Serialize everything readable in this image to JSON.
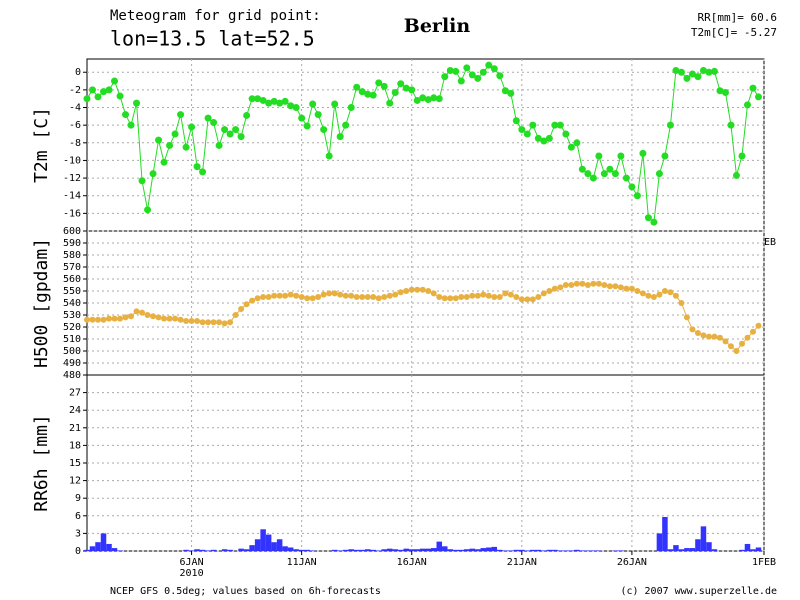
{
  "header": {
    "line1": "Meteogram for grid point:",
    "line2": "lon=13.5  lat=52.5",
    "location": "Berlin",
    "info1": "RR[mm]=  60.6",
    "info2": "T2m[C]= -5.27"
  },
  "footer": {
    "left": "NCEP GFS 0.5deg; values based on 6h-forecasts",
    "right": "(c) 2007 www.superzelle.de"
  },
  "time_axis": {
    "xlim": [
      0.25,
      31
    ],
    "year": "2010",
    "xticks": [
      {
        "value": 5,
        "label": "6JAN"
      },
      {
        "value": 10,
        "label": "11JAN"
      },
      {
        "value": 15,
        "label": "16JAN"
      },
      {
        "value": 20,
        "label": "21JAN"
      },
      {
        "value": 25,
        "label": "26JAN"
      },
      {
        "value": 31,
        "label": "1FEB"
      }
    ],
    "x": [
      0.25,
      0.5,
      0.75,
      1,
      1.25,
      1.5,
      1.75,
      2,
      2.25,
      2.5,
      2.75,
      3,
      3.25,
      3.5,
      3.75,
      4,
      4.25,
      4.5,
      4.75,
      5,
      5.25,
      5.5,
      5.75,
      6,
      6.25,
      6.5,
      6.75,
      7,
      7.25,
      7.5,
      7.75,
      8,
      8.25,
      8.5,
      8.75,
      9,
      9.25,
      9.5,
      9.75,
      10,
      10.25,
      10.5,
      10.75,
      11,
      11.25,
      11.5,
      11.75,
      12,
      12.25,
      12.5,
      12.75,
      13,
      13.25,
      13.5,
      13.75,
      14,
      14.25,
      14.5,
      14.75,
      15,
      15.25,
      15.5,
      15.75,
      16,
      16.25,
      16.5,
      16.75,
      17,
      17.25,
      17.5,
      17.75,
      18,
      18.25,
      18.5,
      18.75,
      19,
      19.25,
      19.5,
      19.75,
      20,
      20.25,
      20.5,
      20.75,
      21,
      21.25,
      21.5,
      21.75,
      22,
      22.25,
      22.5,
      22.75,
      23,
      23.25,
      23.5,
      23.75,
      24,
      24.25,
      24.5,
      24.75,
      25,
      25.25,
      25.5,
      25.75,
      26,
      26.25,
      26.5,
      26.75,
      27,
      27.25,
      27.5,
      27.75,
      28,
      28.25,
      28.5,
      28.75,
      29,
      29.25,
      29.5,
      29.75,
      30,
      30.25,
      30.5,
      30.75
    ]
  },
  "chart_data": [
    {
      "type": "line",
      "ylabel": "T2m [C]",
      "color": "#22dd22",
      "ylim": [
        -18,
        1.5
      ],
      "yticks": [
        -16,
        -14,
        -12,
        -10,
        -8,
        -6,
        -4,
        -2,
        0
      ],
      "grid": true,
      "values": [
        -3,
        -2,
        -2.8,
        -2.2,
        -2,
        -1,
        -2.7,
        -4.8,
        -6,
        -3.5,
        -12.3,
        -15.6,
        -11.5,
        -7.7,
        -10.2,
        -8.3,
        -7,
        -4.8,
        -8.5,
        -6.2,
        -10.7,
        -11.3,
        -5.2,
        -5.7,
        -8.3,
        -6.5,
        -7,
        -6.5,
        -7.3,
        -4.9,
        -3,
        -3,
        -3.2,
        -3.5,
        -3.3,
        -3.5,
        -3.3,
        -3.8,
        -4,
        -5.2,
        -6.1,
        -3.6,
        -4.8,
        -6.5,
        -9.5,
        -3.6,
        -7.3,
        -6,
        -4,
        -1.7,
        -2.2,
        -2.5,
        -2.6,
        -1.2,
        -1.6,
        -3.5,
        -2.3,
        -1.3,
        -1.8,
        -2,
        -3.2,
        -2.9,
        -3.1,
        -2.9,
        -3,
        -0.5,
        0.2,
        0.1,
        -1,
        0.5,
        -0.3,
        -0.7,
        0,
        0.8,
        0.4,
        -0.4,
        -2.1,
        -2.4,
        -5.5,
        -6.5,
        -7,
        -6,
        -7.5,
        -7.8,
        -7.5,
        -6,
        -6,
        -7,
        -8.5,
        -8,
        -11,
        -11.5,
        -12,
        -9.5,
        -11.5,
        -11,
        -11.5,
        -9.5,
        -12,
        -13,
        -14,
        -9.2,
        -16.5,
        -17,
        -11.5,
        -9.5,
        -6,
        0.2,
        0,
        -0.7,
        -0.2,
        -0.5,
        0.2,
        0,
        0.1,
        -2.1,
        -2.3,
        -6,
        -11.7,
        -9.5,
        -3.7,
        -1.8,
        -2.8
      ]
    },
    {
      "type": "line",
      "ylabel": "H500 [gpdam]",
      "color": "#e8b040",
      "ylim": [
        480,
        600
      ],
      "yticks": [
        480,
        490,
        500,
        510,
        520,
        530,
        540,
        550,
        560,
        570,
        580,
        590,
        600
      ],
      "grid": true,
      "values": [
        526,
        526,
        526,
        526,
        527,
        527,
        527,
        528,
        529,
        533,
        532,
        530,
        529,
        528,
        527,
        527,
        527,
        526,
        525,
        525,
        525,
        524,
        524,
        524,
        524,
        523,
        524,
        530,
        535,
        539,
        542,
        544,
        545,
        545,
        546,
        546,
        546,
        547,
        546,
        545,
        544,
        544,
        545,
        547,
        548,
        548,
        547,
        546,
        546,
        545,
        545,
        545,
        545,
        544,
        545,
        546,
        547,
        549,
        550,
        551,
        551,
        551,
        550,
        548,
        545,
        544,
        544,
        544,
        545,
        545,
        546,
        546,
        547,
        546,
        545,
        545,
        548,
        547,
        545,
        543,
        543,
        543,
        545,
        548,
        550,
        552,
        553,
        555,
        555,
        556,
        556,
        555,
        556,
        556,
        555,
        554,
        554,
        553,
        552,
        552,
        550,
        548,
        546,
        545,
        547,
        550,
        549,
        546,
        540,
        528,
        518,
        515,
        513,
        512,
        512,
        511,
        508,
        504,
        500,
        506,
        511,
        516,
        521
      ]
    },
    {
      "type": "bar",
      "ylabel": "RR6h [mm]",
      "color": "#3333ff",
      "ylim": [
        0,
        30
      ],
      "yticks": [
        0,
        3,
        6,
        9,
        12,
        15,
        18,
        21,
        24,
        27
      ],
      "grid": true,
      "values": [
        0.2,
        0.8,
        1.5,
        3,
        1.2,
        0.5,
        0.1,
        0,
        0,
        0,
        0,
        0,
        0,
        0,
        0,
        0,
        0,
        0,
        0.2,
        0.1,
        0.3,
        0.2,
        0.1,
        0.2,
        0,
        0.3,
        0.2,
        0,
        0.4,
        0.3,
        1,
        2,
        3.7,
        2.8,
        1.5,
        2,
        0.8,
        0.6,
        0.3,
        0.2,
        0.2,
        0.1,
        0,
        0,
        0,
        0.2,
        0.1,
        0.2,
        0.3,
        0.2,
        0.2,
        0.3,
        0.2,
        0.1,
        0.3,
        0.4,
        0.3,
        0.2,
        0.4,
        0.3,
        0.3,
        0.4,
        0.4,
        0.5,
        1.6,
        0.8,
        0.3,
        0.2,
        0.2,
        0.3,
        0.4,
        0.3,
        0.5,
        0.6,
        0.7,
        0.2,
        0.1,
        0.1,
        0.2,
        0.2,
        0.1,
        0.2,
        0.2,
        0.1,
        0.2,
        0.2,
        0.1,
        0.1,
        0.1,
        0.2,
        0.1,
        0.1,
        0.1,
        0.1,
        0,
        0,
        0.1,
        0.1,
        0,
        0,
        0,
        0,
        0,
        0,
        3,
        5.8,
        0.3,
        1,
        0.3,
        0.5,
        0.5,
        2,
        4.2,
        1.5,
        0.3,
        0,
        0,
        0,
        0,
        0.2,
        1.2,
        0.3,
        0.6
      ]
    }
  ]
}
